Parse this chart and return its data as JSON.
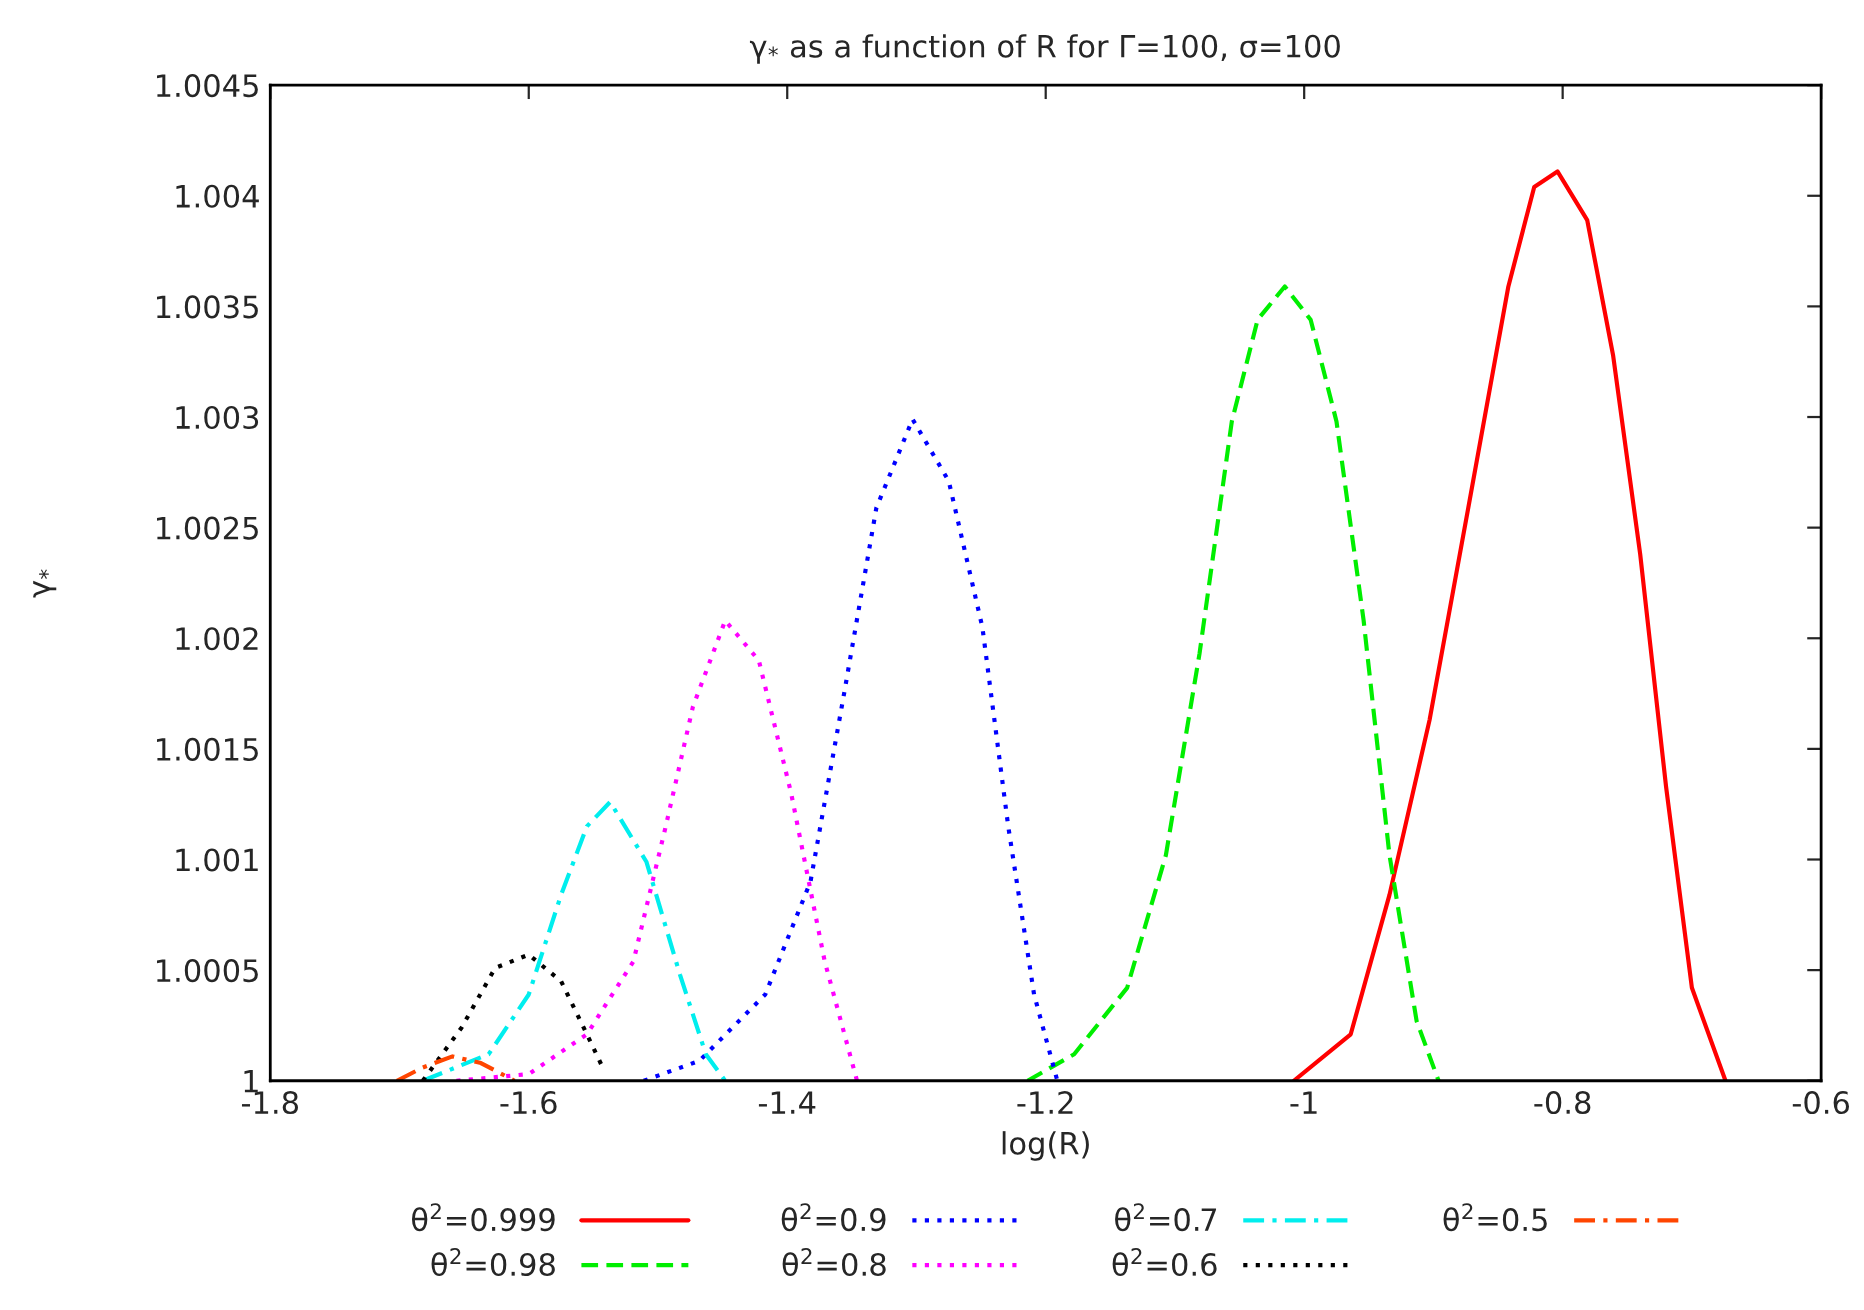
{
  "chart_data": {
    "type": "line",
    "title": "γ$_{*}$ as a function of R for Γ=100, σ=100",
    "xlabel": "log(R)",
    "ylabel": "γ$_{*}$",
    "xlim": [
      -1.8,
      -0.6
    ],
    "xticks": [
      -1.8,
      -1.6,
      -1.4,
      -1.2,
      -1,
      -0.8,
      -0.6
    ],
    "ylim": [
      1,
      1.0045
    ],
    "yticks": [
      1,
      1.0005,
      1.001,
      1.0015,
      1.002,
      1.0025,
      1.003,
      1.0035,
      1.004,
      1.0045
    ],
    "legend": "bottom",
    "grid": false,
    "series": [
      {
        "name": "θ$^{2}$=0.999",
        "color": "#ff0000",
        "line_style": "solid",
        "x": [
          -1.008,
          -0.964,
          -0.934,
          -0.903,
          -0.873,
          -0.842,
          -0.822,
          -0.804,
          -0.781,
          -0.761,
          -0.74,
          -0.72,
          -0.7,
          -0.674
        ],
        "values": [
          1,
          1.00021,
          1.00084,
          1.00163,
          1.00259,
          1.00359,
          1.00404,
          1.00411,
          1.00389,
          1.00328,
          1.00238,
          1.00133,
          1.00042,
          1
        ]
      },
      {
        "name": "θ$^{2}$=0.98",
        "color": "#00ee00",
        "line_style": "dashed",
        "x": [
          -1.214,
          -1.178,
          -1.137,
          -1.107,
          -1.081,
          -1.056,
          -1.036,
          -1.015,
          -0.995,
          -0.975,
          -0.954,
          -0.934,
          -0.913,
          -0.896
        ],
        "values": [
          1,
          1.00012,
          1.00042,
          1.00102,
          1.00193,
          1.00298,
          1.00344,
          1.00359,
          1.00344,
          1.00298,
          1.00208,
          1.00102,
          1.00027,
          1
        ]
      },
      {
        "name": "θ$^{2}$=0.9",
        "color": "#0000ff",
        "line_style": "dotted",
        "x": [
          -1.511,
          -1.468,
          -1.417,
          -1.382,
          -1.356,
          -1.331,
          -1.303,
          -1.275,
          -1.249,
          -1.229,
          -1.209,
          -1.191
        ],
        "values": [
          1,
          1.00009,
          1.00039,
          1.0009,
          1.00175,
          1.00259,
          1.00299,
          1.00271,
          1.00205,
          1.00115,
          1.00039,
          1
        ]
      },
      {
        "name": "θ$^{2}$=0.8",
        "color": "#ff00ff",
        "line_style": "dotted",
        "x": [
          -1.656,
          -1.6,
          -1.555,
          -1.519,
          -1.494,
          -1.473,
          -1.448,
          -1.422,
          -1.397,
          -1.371,
          -1.346
        ],
        "values": [
          1,
          1.00003,
          1.00021,
          1.00054,
          1.00115,
          1.00169,
          1.00208,
          1.0019,
          1.0013,
          1.00054,
          1
        ]
      },
      {
        "name": "θ$^{2}$=0.7",
        "color": "#00eeee",
        "line_style": "dashdot",
        "x": [
          -1.682,
          -1.631,
          -1.6,
          -1.575,
          -1.555,
          -1.537,
          -1.509,
          -1.483,
          -1.463,
          -1.448
        ],
        "values": [
          1,
          1.00012,
          1.00039,
          1.00084,
          1.00115,
          1.00126,
          1.00099,
          1.00048,
          1.00012,
          1
        ]
      },
      {
        "name": "θ$^{2}$=0.6",
        "color": "#000000",
        "line_style": "dotted",
        "x": [
          -1.682,
          -1.652,
          -1.626,
          -1.6,
          -1.575,
          -1.555,
          -1.542
        ],
        "values": [
          1,
          1.00024,
          1.00051,
          1.00057,
          1.00045,
          1.00021,
          1.00005
        ]
      },
      {
        "name": "θ$^{2}$=0.5",
        "color": "#ff4500",
        "line_style": "dashdot",
        "x": [
          -1.702,
          -1.682,
          -1.659,
          -1.637,
          -1.611
        ],
        "values": [
          1,
          1.00006,
          1.00011,
          1.00008,
          1
        ]
      }
    ]
  }
}
